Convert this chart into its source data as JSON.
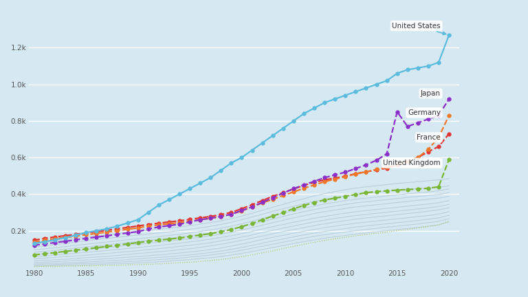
{
  "background_color": "#d6e8f2",
  "plot_bg_color": "#d6e8f2",
  "xlim": [
    1979.5,
    2021
  ],
  "ylim": [
    0,
    1380
  ],
  "yticks": [
    200,
    400,
    600,
    800,
    1000,
    1200
  ],
  "ytick_labels": [
    "0.2k",
    "0.4k",
    "0.6k",
    "0.8k",
    "1.0k",
    "1.2k"
  ],
  "xticks": [
    1980,
    1985,
    1990,
    1995,
    2000,
    2005,
    2010,
    2015,
    2020
  ],
  "series": {
    "United States": {
      "color": "#5bbcdd",
      "linewidth": 1.6,
      "marker": "o",
      "markersize": 3.5,
      "linestyle": "-",
      "zorder": 10,
      "data": [
        131,
        140,
        150,
        162,
        175,
        190,
        200,
        210,
        225,
        242,
        260,
        300,
        340,
        370,
        400,
        430,
        460,
        490,
        530,
        570,
        600,
        640,
        680,
        720,
        760,
        800,
        840,
        870,
        900,
        920,
        940,
        960,
        980,
        1000,
        1020,
        1060,
        1080,
        1090,
        1100,
        1120,
        1270
      ]
    },
    "Japan": {
      "color": "#8b2fc9",
      "linewidth": 1.6,
      "marker": "o",
      "markersize": 3.5,
      "linestyle": "--",
      "zorder": 9,
      "data": [
        120,
        128,
        135,
        142,
        150,
        158,
        165,
        172,
        180,
        188,
        195,
        210,
        220,
        228,
        235,
        248,
        260,
        268,
        278,
        290,
        310,
        330,
        355,
        380,
        405,
        430,
        450,
        470,
        490,
        505,
        520,
        540,
        560,
        585,
        620,
        850,
        770,
        790,
        810,
        830,
        920
      ]
    },
    "Germany": {
      "color": "#f07828",
      "linewidth": 1.6,
      "marker": "o",
      "markersize": 3.5,
      "linestyle": "--",
      "zorder": 8,
      "data": [
        138,
        148,
        156,
        163,
        170,
        178,
        185,
        192,
        200,
        208,
        215,
        225,
        232,
        238,
        244,
        252,
        260,
        268,
        278,
        290,
        308,
        330,
        352,
        372,
        392,
        412,
        432,
        450,
        468,
        482,
        495,
        510,
        522,
        535,
        548,
        562,
        578,
        600,
        645,
        710,
        830
      ]
    },
    "France": {
      "color": "#e03535",
      "linewidth": 1.6,
      "marker": "o",
      "markersize": 3.5,
      "linestyle": "--",
      "zorder": 7,
      "data": [
        148,
        158,
        166,
        173,
        180,
        188,
        195,
        202,
        210,
        218,
        226,
        234,
        241,
        248,
        254,
        262,
        270,
        278,
        288,
        300,
        320,
        342,
        365,
        388,
        408,
        428,
        448,
        464,
        478,
        488,
        498,
        512,
        522,
        532,
        542,
        558,
        578,
        600,
        632,
        660,
        730
      ]
    },
    "United Kingdom": {
      "color": "#7ab535",
      "linewidth": 1.6,
      "marker": "o",
      "markersize": 3.5,
      "linestyle": "--",
      "zorder": 6,
      "data": [
        68,
        74,
        80,
        87,
        94,
        100,
        107,
        114,
        121,
        128,
        135,
        142,
        148,
        154,
        160,
        168,
        176,
        184,
        194,
        206,
        222,
        240,
        260,
        280,
        300,
        320,
        338,
        354,
        368,
        378,
        388,
        398,
        408,
        414,
        418,
        422,
        425,
        428,
        432,
        440,
        590
      ]
    }
  },
  "grey_series": [
    [
      128,
      135,
      143,
      151,
      158,
      165,
      172,
      178,
      184,
      190,
      196,
      202,
      208,
      214,
      220,
      228,
      236,
      244,
      254,
      265,
      280,
      295,
      312,
      328,
      344,
      360,
      375,
      390,
      403,
      414,
      424,
      433,
      440,
      446,
      452,
      458,
      463,
      468,
      473,
      478,
      485
    ],
    [
      110,
      117,
      124,
      131,
      138,
      145,
      152,
      158,
      164,
      170,
      176,
      182,
      188,
      194,
      200,
      208,
      216,
      224,
      234,
      246,
      260,
      275,
      290,
      306,
      320,
      334,
      347,
      360,
      371,
      381,
      390,
      398,
      404,
      410,
      416,
      421,
      426,
      430,
      434,
      438,
      445
    ],
    [
      95,
      101,
      107,
      113,
      120,
      126,
      132,
      138,
      144,
      150,
      156,
      162,
      168,
      174,
      180,
      188,
      196,
      204,
      214,
      225,
      238,
      252,
      267,
      282,
      296,
      310,
      323,
      335,
      346,
      355,
      364,
      372,
      378,
      384,
      390,
      396,
      402,
      407,
      412,
      418,
      428
    ],
    [
      82,
      87,
      93,
      99,
      105,
      111,
      117,
      123,
      129,
      135,
      141,
      147,
      153,
      159,
      165,
      172,
      180,
      188,
      198,
      210,
      222,
      236,
      250,
      264,
      278,
      291,
      304,
      316,
      326,
      335,
      344,
      352,
      358,
      364,
      370,
      376,
      382,
      387,
      392,
      398,
      408
    ],
    [
      70,
      75,
      80,
      85,
      90,
      96,
      102,
      108,
      114,
      120,
      126,
      132,
      138,
      144,
      150,
      157,
      164,
      172,
      181,
      192,
      204,
      217,
      230,
      244,
      257,
      270,
      282,
      294,
      304,
      313,
      322,
      330,
      336,
      342,
      348,
      354,
      360,
      366,
      372,
      378,
      388
    ],
    [
      58,
      62,
      67,
      72,
      77,
      82,
      87,
      92,
      97,
      103,
      108,
      114,
      120,
      126,
      132,
      139,
      146,
      154,
      163,
      173,
      184,
      196,
      209,
      222,
      234,
      246,
      257,
      268,
      278,
      287,
      296,
      304,
      310,
      316,
      322,
      328,
      334,
      340,
      346,
      353,
      365
    ],
    [
      46,
      50,
      54,
      58,
      62,
      66,
      71,
      76,
      81,
      86,
      91,
      96,
      102,
      108,
      114,
      120,
      127,
      135,
      144,
      154,
      165,
      177,
      190,
      202,
      214,
      226,
      237,
      248,
      258,
      267,
      275,
      283,
      289,
      295,
      301,
      307,
      313,
      319,
      325,
      332,
      344
    ],
    [
      35,
      38,
      41,
      44,
      48,
      52,
      56,
      60,
      65,
      70,
      75,
      80,
      85,
      90,
      96,
      102,
      109,
      117,
      126,
      136,
      147,
      159,
      171,
      183,
      195,
      206,
      217,
      228,
      238,
      247,
      255,
      263,
      270,
      276,
      282,
      288,
      294,
      300,
      307,
      314,
      325
    ],
    [
      26,
      28,
      31,
      34,
      37,
      40,
      43,
      47,
      51,
      55,
      59,
      63,
      68,
      73,
      78,
      84,
      90,
      97,
      106,
      116,
      127,
      139,
      152,
      164,
      175,
      186,
      197,
      207,
      217,
      225,
      233,
      241,
      247,
      253,
      259,
      265,
      271,
      277,
      283,
      290,
      305
    ],
    [
      18,
      20,
      22,
      24,
      26,
      29,
      32,
      35,
      38,
      42,
      46,
      50,
      54,
      58,
      63,
      68,
      74,
      81,
      89,
      98,
      108,
      120,
      132,
      144,
      155,
      166,
      177,
      187,
      196,
      204,
      212,
      220,
      226,
      232,
      238,
      244,
      250,
      256,
      263,
      270,
      285
    ],
    [
      12,
      13,
      15,
      17,
      19,
      21,
      23,
      25,
      28,
      31,
      34,
      38,
      42,
      46,
      50,
      55,
      61,
      67,
      75,
      83,
      93,
      104,
      115,
      126,
      137,
      148,
      159,
      169,
      178,
      186,
      193,
      200,
      207,
      213,
      219,
      225,
      231,
      237,
      244,
      251,
      266
    ],
    [
      7,
      8,
      9,
      10,
      11,
      13,
      15,
      17,
      19,
      21,
      24,
      27,
      30,
      34,
      38,
      42,
      47,
      52,
      59,
      67,
      76,
      86,
      97,
      108,
      119,
      130,
      140,
      150,
      159,
      167,
      174,
      181,
      188,
      194,
      200,
      206,
      212,
      218,
      225,
      232,
      248
    ]
  ],
  "dotted_grey": [
    4,
    5,
    5,
    6,
    7,
    8,
    9,
    10,
    11,
    13,
    15,
    17,
    19,
    22,
    25,
    28,
    32,
    37,
    43,
    50,
    58,
    68,
    79,
    90,
    102,
    114,
    126,
    137,
    147,
    156,
    164,
    172,
    179,
    186,
    193,
    200,
    207,
    215,
    223,
    232,
    252
  ]
}
